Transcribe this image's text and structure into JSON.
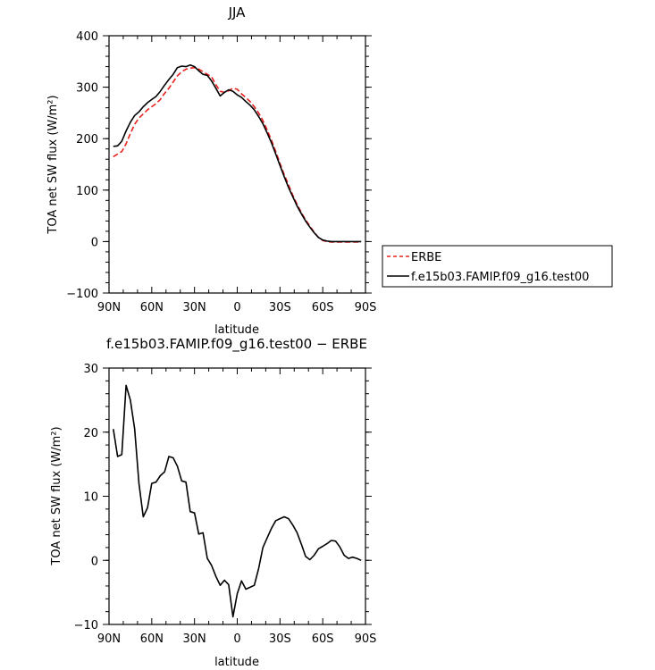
{
  "chart_data": [
    {
      "type": "line",
      "title": "JJA",
      "xlabel": "latitude",
      "ylabel": "TOA net SW flux (W/m²)",
      "xlim": [
        90,
        -90
      ],
      "ylim": [
        -100,
        400
      ],
      "x_tick_values": [
        90,
        60,
        30,
        0,
        -30,
        -60,
        -90
      ],
      "x_tick_labels": [
        "90N",
        "60N",
        "30N",
        "0",
        "30S",
        "60S",
        "90S"
      ],
      "y_tick_values": [
        -100,
        0,
        100,
        200,
        300,
        400
      ],
      "y_tick_labels": [
        "−100",
        "0",
        "100",
        "200",
        "300",
        "400"
      ],
      "legend_position": "right",
      "series": [
        {
          "name": "ERBE",
          "color": "#e8201c",
          "dash": true,
          "x": [
            87,
            84,
            81,
            78,
            75,
            72,
            69,
            66,
            63,
            60,
            57,
            54,
            51,
            48,
            45,
            42,
            39,
            36,
            33,
            30,
            27,
            24,
            21,
            18,
            15,
            12,
            9,
            6,
            3,
            0,
            -3,
            -6,
            -9,
            -12,
            -15,
            -18,
            -21,
            -24,
            -27,
            -30,
            -33,
            -36,
            -39,
            -42,
            -45,
            -48,
            -51,
            -54,
            -57,
            -60,
            -63,
            -66,
            -69,
            -72,
            -75,
            -78,
            -81,
            -84,
            -87
          ],
          "y": [
            165,
            170,
            175,
            190,
            210,
            228,
            240,
            248,
            256,
            262,
            268,
            276,
            288,
            298,
            310,
            322,
            330,
            335,
            337,
            338,
            335,
            330,
            325,
            320,
            305,
            292,
            290,
            293,
            298,
            296,
            287,
            280,
            272,
            262,
            250,
            235,
            217,
            197,
            175,
            152,
            130,
            110,
            90,
            72,
            56,
            42,
            30,
            18,
            8,
            2,
            0,
            -1,
            -1,
            -1,
            -1,
            -1,
            -1,
            -1,
            -1
          ]
        },
        {
          "name": "f.e15b03.FAMIP.f09_g16.test00",
          "color": "#000000",
          "dash": false,
          "x": [
            87,
            84,
            81,
            78,
            75,
            72,
            69,
            66,
            63,
            60,
            57,
            54,
            51,
            48,
            45,
            42,
            39,
            36,
            33,
            30,
            27,
            24,
            21,
            18,
            15,
            12,
            9,
            6,
            3,
            0,
            -3,
            -6,
            -9,
            -12,
            -15,
            -18,
            -21,
            -24,
            -27,
            -30,
            -33,
            -36,
            -39,
            -42,
            -45,
            -48,
            -51,
            -54,
            -57,
            -60,
            -63,
            -66,
            -69,
            -72,
            -75,
            -78,
            -81,
            -84,
            -87
          ],
          "y": [
            185,
            186,
            195,
            215,
            232,
            245,
            252,
            262,
            270,
            276,
            282,
            292,
            304,
            315,
            325,
            338,
            341,
            340,
            343,
            340,
            332,
            325,
            323,
            312,
            298,
            283,
            290,
            295,
            292,
            285,
            280,
            272,
            265,
            256,
            243,
            229,
            211,
            192,
            170,
            148,
            126,
            105,
            87,
            69,
            54,
            40,
            28,
            17,
            8,
            3,
            1,
            0,
            0,
            0,
            0,
            0,
            0,
            0,
            0
          ]
        }
      ]
    },
    {
      "type": "line",
      "title": "f.e15b03.FAMIP.f09_g16.test00 − ERBE",
      "xlabel": "latitude",
      "ylabel": "TOA net SW flux (W/m²)",
      "xlim": [
        90,
        -90
      ],
      "ylim": [
        -10,
        30
      ],
      "x_tick_values": [
        90,
        60,
        30,
        0,
        -30,
        -60,
        -90
      ],
      "x_tick_labels": [
        "90N",
        "60N",
        "30N",
        "0",
        "30S",
        "60S",
        "90S"
      ],
      "y_tick_values": [
        -10,
        0,
        10,
        20,
        30
      ],
      "y_tick_labels": [
        "−10",
        "0",
        "10",
        "20",
        "30"
      ],
      "series": [
        {
          "color": "#000000",
          "dash": false,
          "x": [
            87,
            84,
            81,
            78,
            75,
            72,
            69,
            66,
            63,
            60,
            57,
            54,
            51,
            48,
            45,
            42,
            39,
            36,
            33,
            30,
            27,
            24,
            21,
            18,
            15,
            12,
            9,
            6,
            3,
            0,
            -3,
            -6,
            -9,
            -12,
            -15,
            -18,
            -21,
            -24,
            -27,
            -30,
            -33,
            -36,
            -39,
            -42,
            -45,
            -48,
            -51,
            -54,
            -57,
            -60,
            -63,
            -66,
            -69,
            -72,
            -75,
            -78,
            -81,
            -84,
            -87
          ],
          "y": [
            20.5,
            16.2,
            16.5,
            27.3,
            25.0,
            20.5,
            12.0,
            6.8,
            8.2,
            12.0,
            12.2,
            13.2,
            13.8,
            16.2,
            16.0,
            14.7,
            12.4,
            12.2,
            7.6,
            7.4,
            4.1,
            4.3,
            0.3,
            -0.8,
            -2.5,
            -3.9,
            -3.1,
            -3.8,
            -8.8,
            -5.2,
            -3.2,
            -4.5,
            -4.2,
            -3.9,
            -1.3,
            2.0,
            3.5,
            5.0,
            6.2,
            6.5,
            6.8,
            6.5,
            5.5,
            4.3,
            2.5,
            0.6,
            0.1,
            0.8,
            1.8,
            2.2,
            2.6,
            3.1,
            3.0,
            2.1,
            0.8,
            0.3,
            0.5,
            0.3,
            0.0
          ]
        }
      ]
    }
  ]
}
